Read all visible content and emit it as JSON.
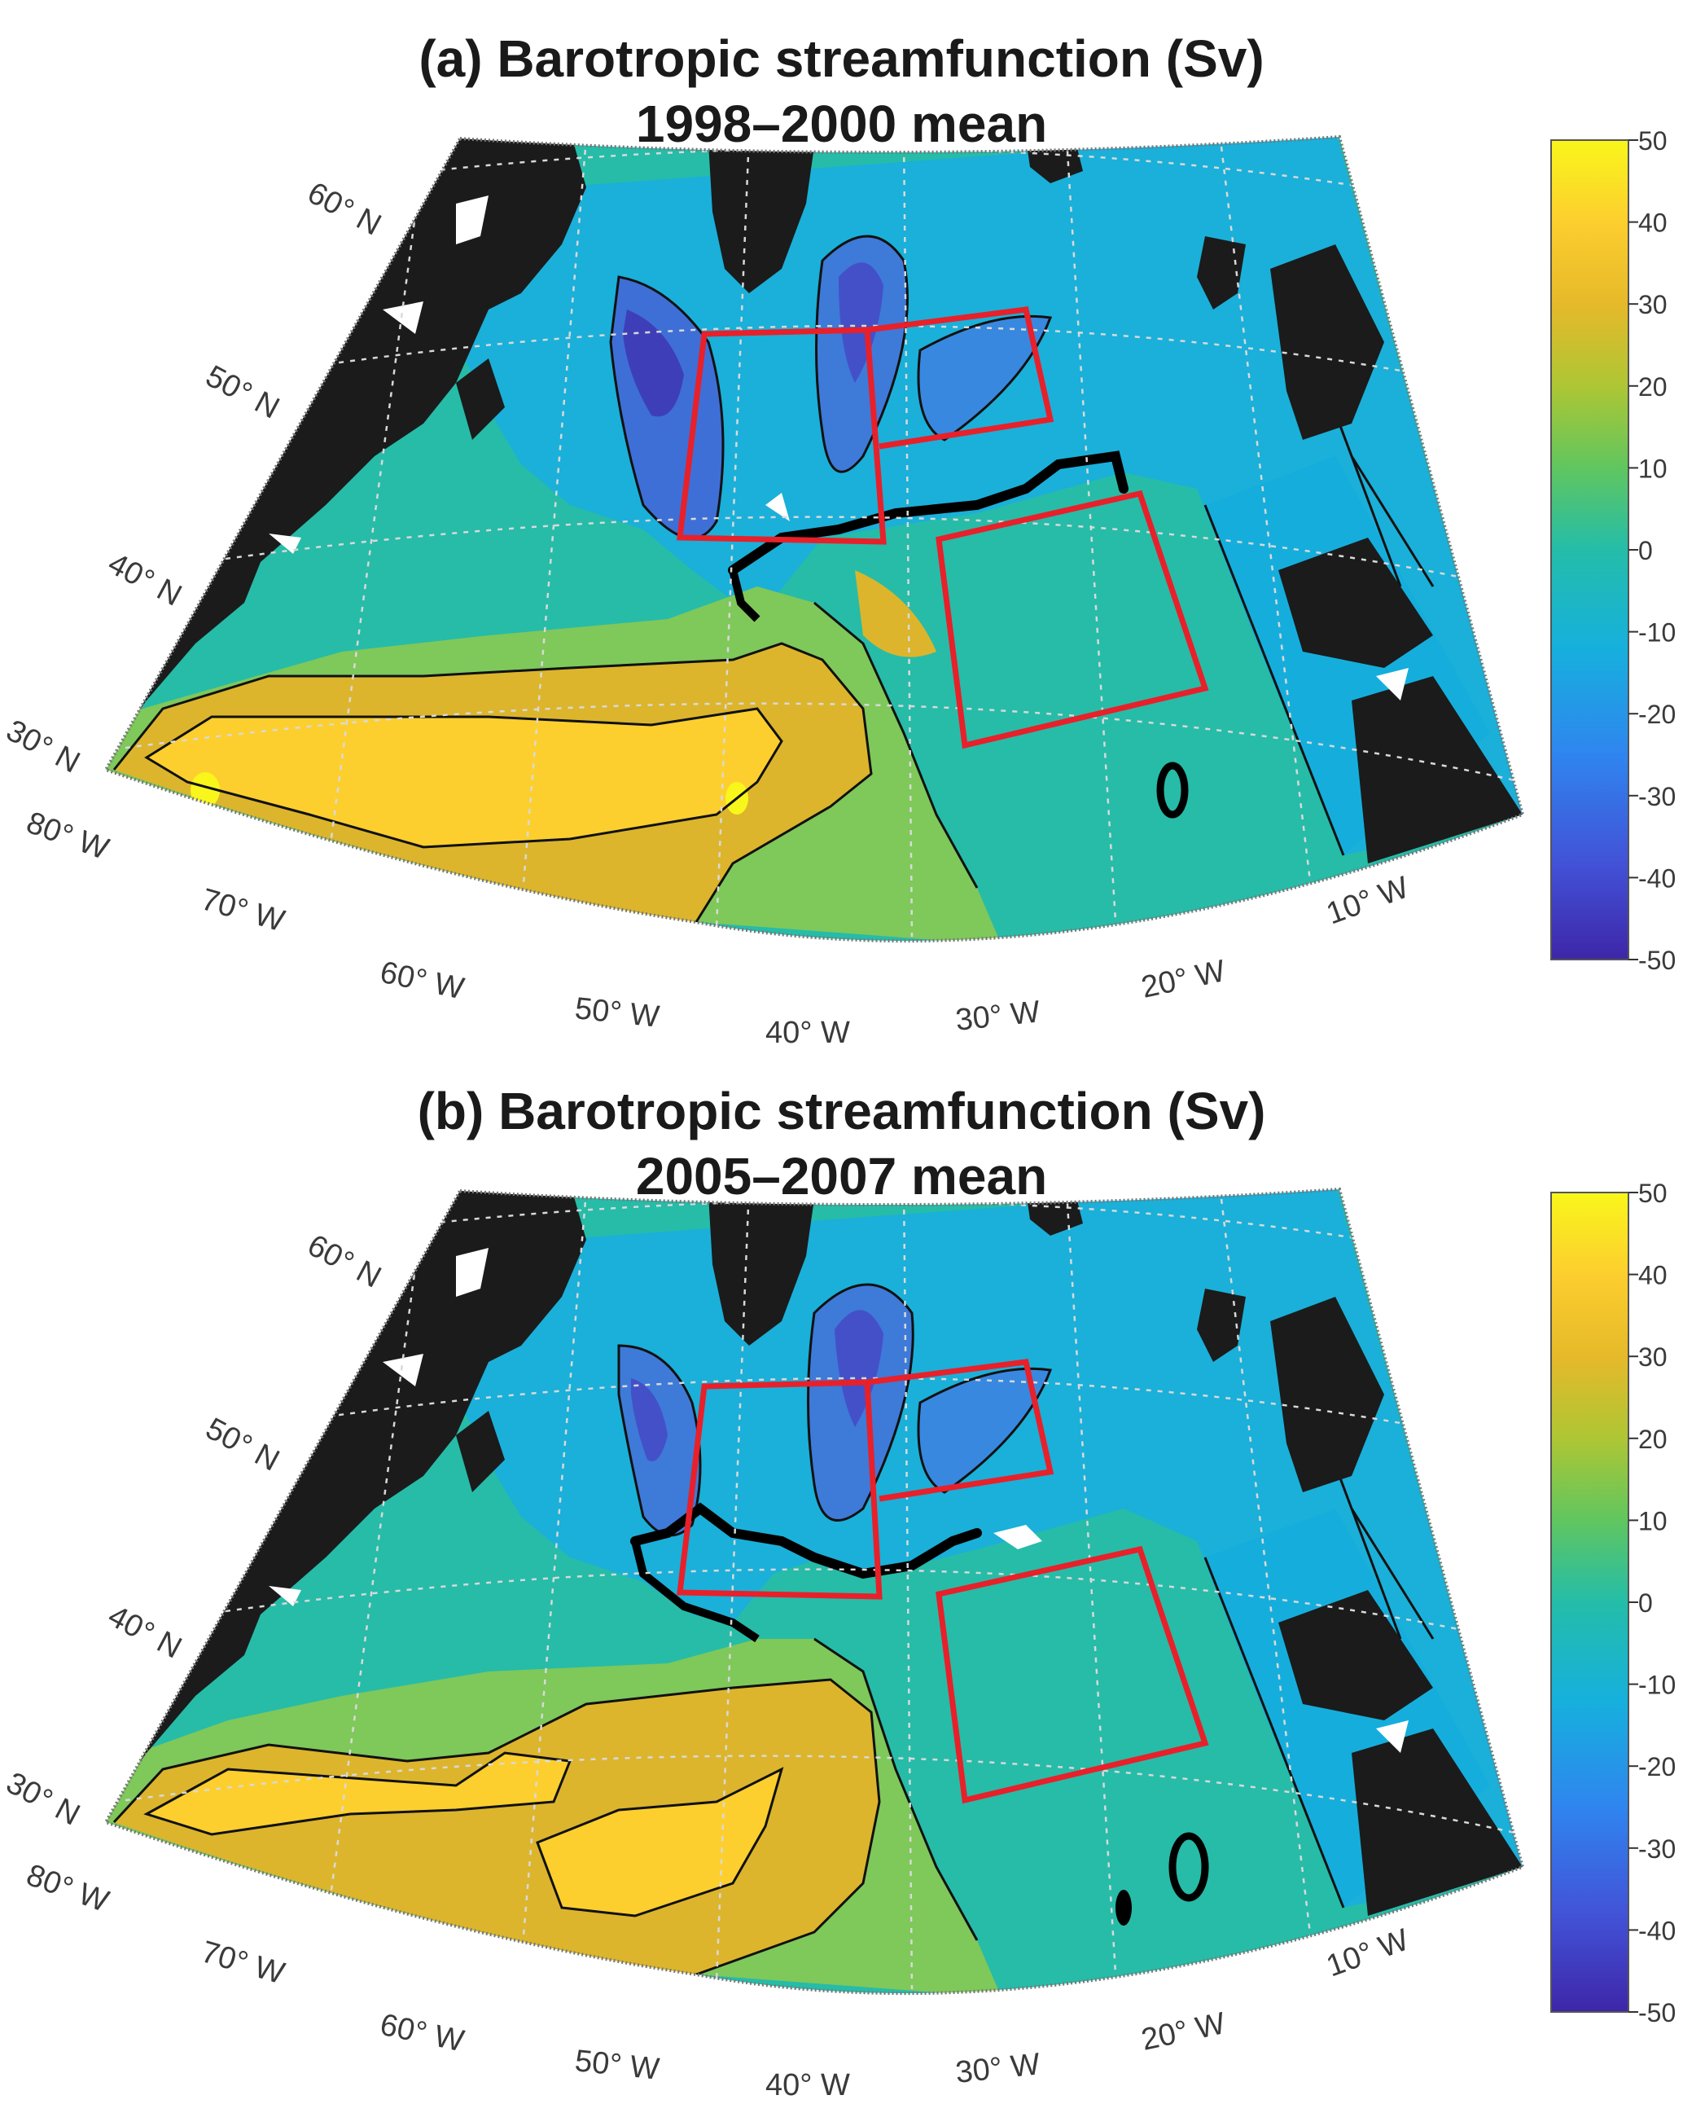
{
  "figure": {
    "panels": [
      {
        "title_line1": "(a) Barotropic streamfunction (Sv)",
        "title_line2": "1998–2000 mean",
        "colorbar_ticks": [
          "50",
          "40",
          "30",
          "20",
          "10",
          "0",
          "-10",
          "-20",
          "-30",
          "-40",
          "-50"
        ]
      },
      {
        "title_line1": "(b) Barotropic streamfunction (Sv)",
        "title_line2": "2005–2007 mean",
        "colorbar_ticks": [
          "50",
          "40",
          "30",
          "20",
          "10",
          "0",
          "-10",
          "-20",
          "-30",
          "-40",
          "-50"
        ]
      }
    ],
    "latitude_labels": [
      "60° N",
      "50° N",
      "40° N",
      "30° N"
    ],
    "longitude_labels": [
      "80° W",
      "70° W",
      "60° W",
      "50° W",
      "40° W",
      "30° W",
      "20° W",
      "10° W"
    ],
    "colorbar": {
      "min": -50,
      "max": 50,
      "colormap": [
        "#3e26a8",
        "#4253d8",
        "#2f85ef",
        "#16b0dd",
        "#24bda9",
        "#60c65f",
        "#aec634",
        "#e6b92a",
        "#fcce2e",
        "#f9f61b"
      ]
    },
    "colors": {
      "land": "#1b1b1b",
      "boxes": "#e8202a",
      "contours": "#111111"
    }
  }
}
